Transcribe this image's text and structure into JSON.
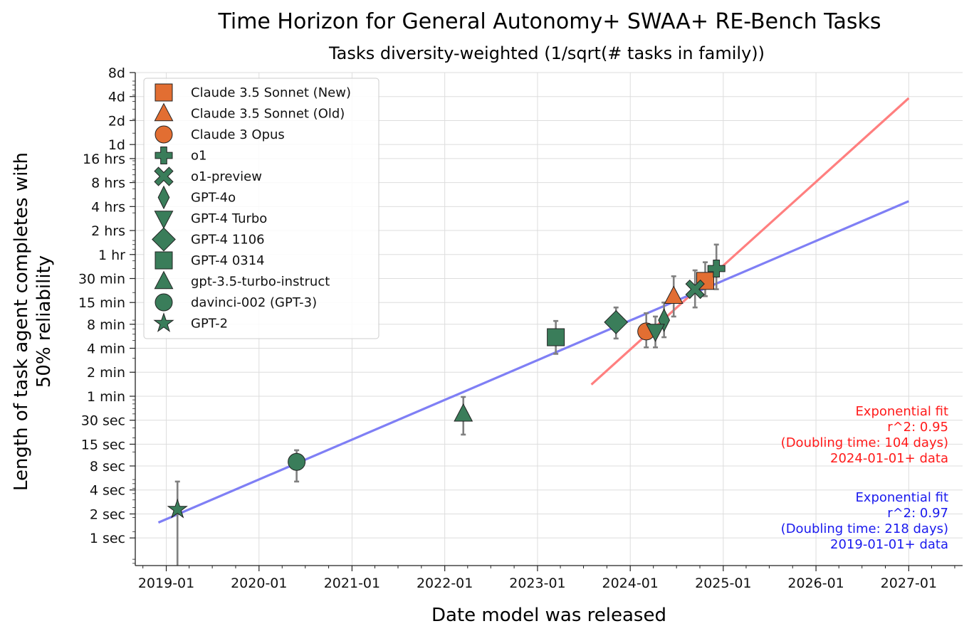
{
  "chart_data": {
    "type": "scatter",
    "title": "Time Horizon for General Autonomy+ SWAA+ RE-Bench Tasks",
    "subtitle": "Tasks diversity-weighted (1/sqrt(# tasks in family))",
    "xlabel": "Date model was released",
    "ylabel_line1": "Length of task agent completes with",
    "ylabel_line2": "50% reliability",
    "y_scale": "log",
    "y_unit": "minutes",
    "xlim": [
      "2018-09-01",
      "2027-08-01"
    ],
    "ylim_minutes": [
      0.0075,
      11520
    ],
    "grid": true,
    "legend_position": "upper left",
    "x_ticks": [
      {
        "date": "2019-01-01",
        "label": "2019-01"
      },
      {
        "date": "2020-01-01",
        "label": "2020-01"
      },
      {
        "date": "2021-01-01",
        "label": "2021-01"
      },
      {
        "date": "2022-01-01",
        "label": "2022-01"
      },
      {
        "date": "2023-01-01",
        "label": "2023-01"
      },
      {
        "date": "2024-01-01",
        "label": "2024-01"
      },
      {
        "date": "2025-01-01",
        "label": "2025-01"
      },
      {
        "date": "2026-01-01",
        "label": "2026-01"
      },
      {
        "date": "2027-01-01",
        "label": "2027-01"
      }
    ],
    "y_ticks": [
      {
        "minutes": 0.016667,
        "label": "1 sec"
      },
      {
        "minutes": 0.033333,
        "label": "2 sec"
      },
      {
        "minutes": 0.066667,
        "label": "4 sec"
      },
      {
        "minutes": 0.133333,
        "label": "8 sec"
      },
      {
        "minutes": 0.25,
        "label": "15 sec"
      },
      {
        "minutes": 0.5,
        "label": "30 sec"
      },
      {
        "minutes": 1,
        "label": "1 min"
      },
      {
        "minutes": 2,
        "label": "2 min"
      },
      {
        "minutes": 4,
        "label": "4 min"
      },
      {
        "minutes": 8,
        "label": "8 min"
      },
      {
        "minutes": 15,
        "label": "15 min"
      },
      {
        "minutes": 30,
        "label": "30 min"
      },
      {
        "minutes": 60,
        "label": "1 hr"
      },
      {
        "minutes": 120,
        "label": "2 hrs"
      },
      {
        "minutes": 240,
        "label": "4 hrs"
      },
      {
        "minutes": 480,
        "label": "8 hrs"
      },
      {
        "minutes": 960,
        "label": "16 hrs"
      },
      {
        "minutes": 1440,
        "label": "1d"
      },
      {
        "minutes": 2880,
        "label": "2d"
      },
      {
        "minutes": 5760,
        "label": "4d"
      },
      {
        "minutes": 11520,
        "label": "8d"
      }
    ],
    "colors": {
      "anthropic": "#e26e32",
      "openai": "#3a7d5a",
      "errorbar": "#808080",
      "fit_2024": "#ff7f7f",
      "fit_2019": "#7f7ff5",
      "annot_2024": "#ff1a1a",
      "annot_2019": "#1a1aee"
    },
    "series": [
      {
        "name": "Claude 3.5 Sonnet (New)",
        "marker": "square",
        "color": "#e26e32",
        "date": "2024-10-22",
        "minutes": 28,
        "err_low": 18,
        "err_high": 48
      },
      {
        "name": "Claude 3.5 Sonnet (Old)",
        "marker": "triangle-up",
        "color": "#e26e32",
        "date": "2024-06-20",
        "minutes": 18,
        "err_low": 10,
        "err_high": 32
      },
      {
        "name": "Claude 3 Opus",
        "marker": "circle",
        "color": "#e26e32",
        "date": "2024-03-04",
        "minutes": 6.5,
        "err_low": 4.1,
        "err_high": 11
      },
      {
        "name": "o1",
        "marker": "plus",
        "color": "#3a7d5a",
        "date": "2024-12-05",
        "minutes": 40,
        "err_low": 22,
        "err_high": 80
      },
      {
        "name": "o1-preview",
        "marker": "x",
        "color": "#3a7d5a",
        "date": "2024-09-12",
        "minutes": 22,
        "err_low": 13,
        "err_high": 38
      },
      {
        "name": "GPT-4o",
        "marker": "thin-diamond",
        "color": "#3a7d5a",
        "date": "2024-05-13",
        "minutes": 9,
        "err_low": 5.5,
        "err_high": 15
      },
      {
        "name": "GPT-4 Turbo",
        "marker": "triangle-down",
        "color": "#3a7d5a",
        "date": "2024-04-09",
        "minutes": 6.5,
        "err_low": 4.1,
        "err_high": 10
      },
      {
        "name": "GPT-4 1106",
        "marker": "diamond",
        "color": "#3a7d5a",
        "date": "2023-11-06",
        "minutes": 8.5,
        "err_low": 5.3,
        "err_high": 13
      },
      {
        "name": "GPT-4 0314",
        "marker": "square",
        "color": "#3a7d5a",
        "date": "2023-03-14",
        "minutes": 5.5,
        "err_low": 3.4,
        "err_high": 8.8
      },
      {
        "name": "gpt-3.5-turbo-instruct",
        "marker": "triangle-up",
        "color": "#3a7d5a",
        "date": "2022-03-15",
        "minutes": 0.6,
        "err_low": 0.33,
        "err_high": 0.98
      },
      {
        "name": "davinci-002 (GPT-3)",
        "marker": "circle",
        "color": "#3a7d5a",
        "date": "2020-05-28",
        "minutes": 0.15,
        "err_low": 0.085,
        "err_high": 0.21
      },
      {
        "name": "GPT-2",
        "marker": "star",
        "color": "#3a7d5a",
        "date": "2019-02-14",
        "minutes": 0.038,
        "err_low": 0.0075,
        "err_high": 0.085
      }
    ],
    "fits": [
      {
        "color": "#ff7f7f",
        "x_start": "2023-08-01",
        "x_end": "2027-01-01",
        "y_start_minutes": 1.4,
        "y_end_minutes": 5500
      },
      {
        "color": "#7f7ff5",
        "x_start": "2018-12-01",
        "x_end": "2027-01-01",
        "y_start_minutes": 0.026,
        "y_end_minutes": 280
      }
    ],
    "annotations": [
      {
        "color": "#ff1a1a",
        "lines": [
          "Exponential fit",
          "r^2: 0.95",
          "(Doubling time: 104 days)",
          "2024-01-01+ data"
        ]
      },
      {
        "color": "#1a1aee",
        "lines": [
          "Exponential fit",
          "r^2: 0.97",
          "(Doubling time: 218 days)",
          "2019-01-01+ data"
        ]
      }
    ]
  }
}
